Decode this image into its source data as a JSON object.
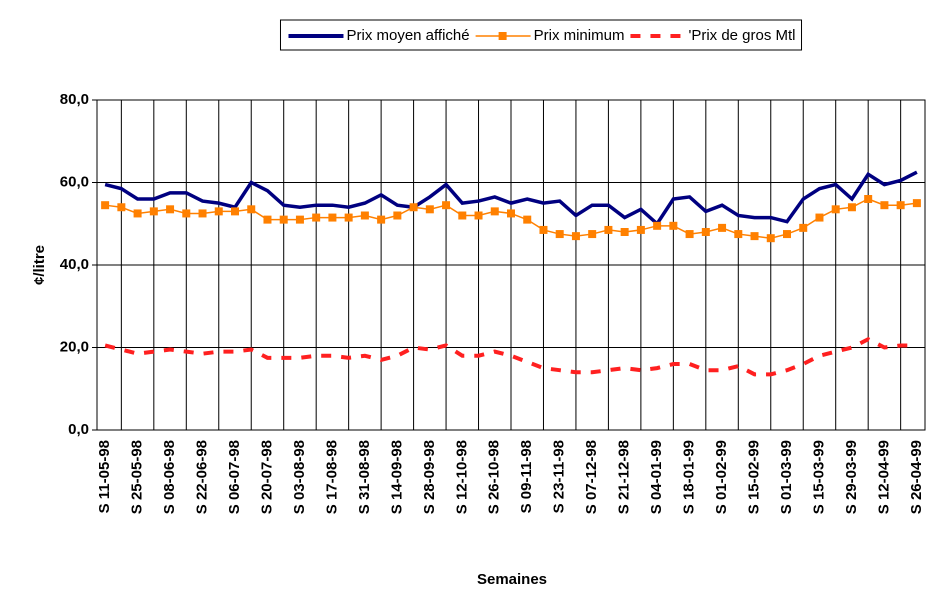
{
  "chart_data": {
    "type": "line",
    "x_label": "Semaines",
    "y_label": "¢/litre",
    "categories": [
      "S 11-05-98",
      null,
      "S 25-05-98",
      null,
      "S 08-06-98",
      null,
      "S 22-06-98",
      null,
      "S 06-07-98",
      null,
      "S 20-07-98",
      null,
      "S 03-08-98",
      null,
      "S 17-08-98",
      null,
      "S 31-08-98",
      null,
      "S 14-09-98",
      null,
      "S 28-09-98",
      null,
      "S 12-10-98",
      null,
      "S 26-10-98",
      null,
      "S 09-11-98",
      null,
      "S 23-11-98",
      null,
      "S 07-12-98",
      null,
      "S 21-12-98",
      null,
      "S 04-01-99",
      null,
      "S 18-01-99",
      null,
      "S 01-02-99",
      null,
      "S 15-02-99",
      null,
      "S 01-03-99",
      null,
      "S 15-03-99",
      null,
      "S 29-03-99",
      null,
      "S 12-04-99",
      null,
      "S 26-04-99"
    ],
    "series": [
      {
        "name": "Prix moyen affiché",
        "color": "#000080",
        "style": "solid",
        "values": [
          59.5,
          58.5,
          56,
          56,
          57.5,
          57.5,
          55.5,
          55,
          54,
          60,
          58,
          54.5,
          54,
          54.5,
          54.5,
          54,
          55,
          57,
          54.5,
          54,
          56.5,
          59.5,
          55,
          55.5,
          56.5,
          55,
          56,
          55,
          55.5,
          52,
          54.5,
          54.5,
          51.5,
          53.5,
          50,
          56,
          56.5,
          53,
          54.5,
          52,
          51.5,
          51.5,
          50.5,
          56,
          58.5,
          59.5,
          56,
          62,
          59.5,
          60.5,
          62.5
        ]
      },
      {
        "name": "Prix minimum",
        "color": "#ff8000",
        "style": "marker",
        "values": [
          54.5,
          54,
          52.5,
          53,
          53.5,
          52.5,
          52.5,
          53,
          53,
          53.5,
          51,
          51,
          51,
          51.5,
          51.5,
          51.5,
          52,
          51,
          52,
          54,
          53.5,
          54.5,
          52,
          52,
          53,
          52.5,
          51,
          48.5,
          47.5,
          47,
          47.5,
          48.5,
          48,
          48.5,
          49.5,
          49.5,
          47.5,
          48,
          49,
          47.5,
          47,
          46.5,
          47.5,
          49,
          51.5,
          53.5,
          54,
          56,
          54.5,
          54.5,
          55
        ]
      },
      {
        "name": "'Prix de gros Mtl",
        "color": "#ff2020",
        "style": "dashed",
        "values": [
          20.5,
          19.5,
          18.5,
          19,
          19.5,
          19,
          18.5,
          19,
          19,
          19.5,
          17.5,
          17.5,
          17.5,
          18,
          18,
          17.5,
          18,
          17,
          18,
          20,
          19.5,
          20.5,
          18,
          18,
          19,
          18,
          16.5,
          15,
          14.5,
          14,
          14,
          14.5,
          15,
          14.5,
          15,
          16,
          16,
          14.5,
          14.5,
          15.5,
          13.5,
          13.5,
          14.5,
          16,
          18,
          19,
          20,
          22,
          20,
          20.5,
          20.5
        ]
      }
    ],
    "ylim": [
      0,
      80
    ],
    "yticks": [
      {
        "value": 0,
        "label": "0,0"
      },
      {
        "value": 20,
        "label": "20,0"
      },
      {
        "value": 40,
        "label": "40,0"
      },
      {
        "value": 60,
        "label": "60,0"
      },
      {
        "value": 80,
        "label": "80,0"
      }
    ],
    "grid": true,
    "legend": "top"
  }
}
